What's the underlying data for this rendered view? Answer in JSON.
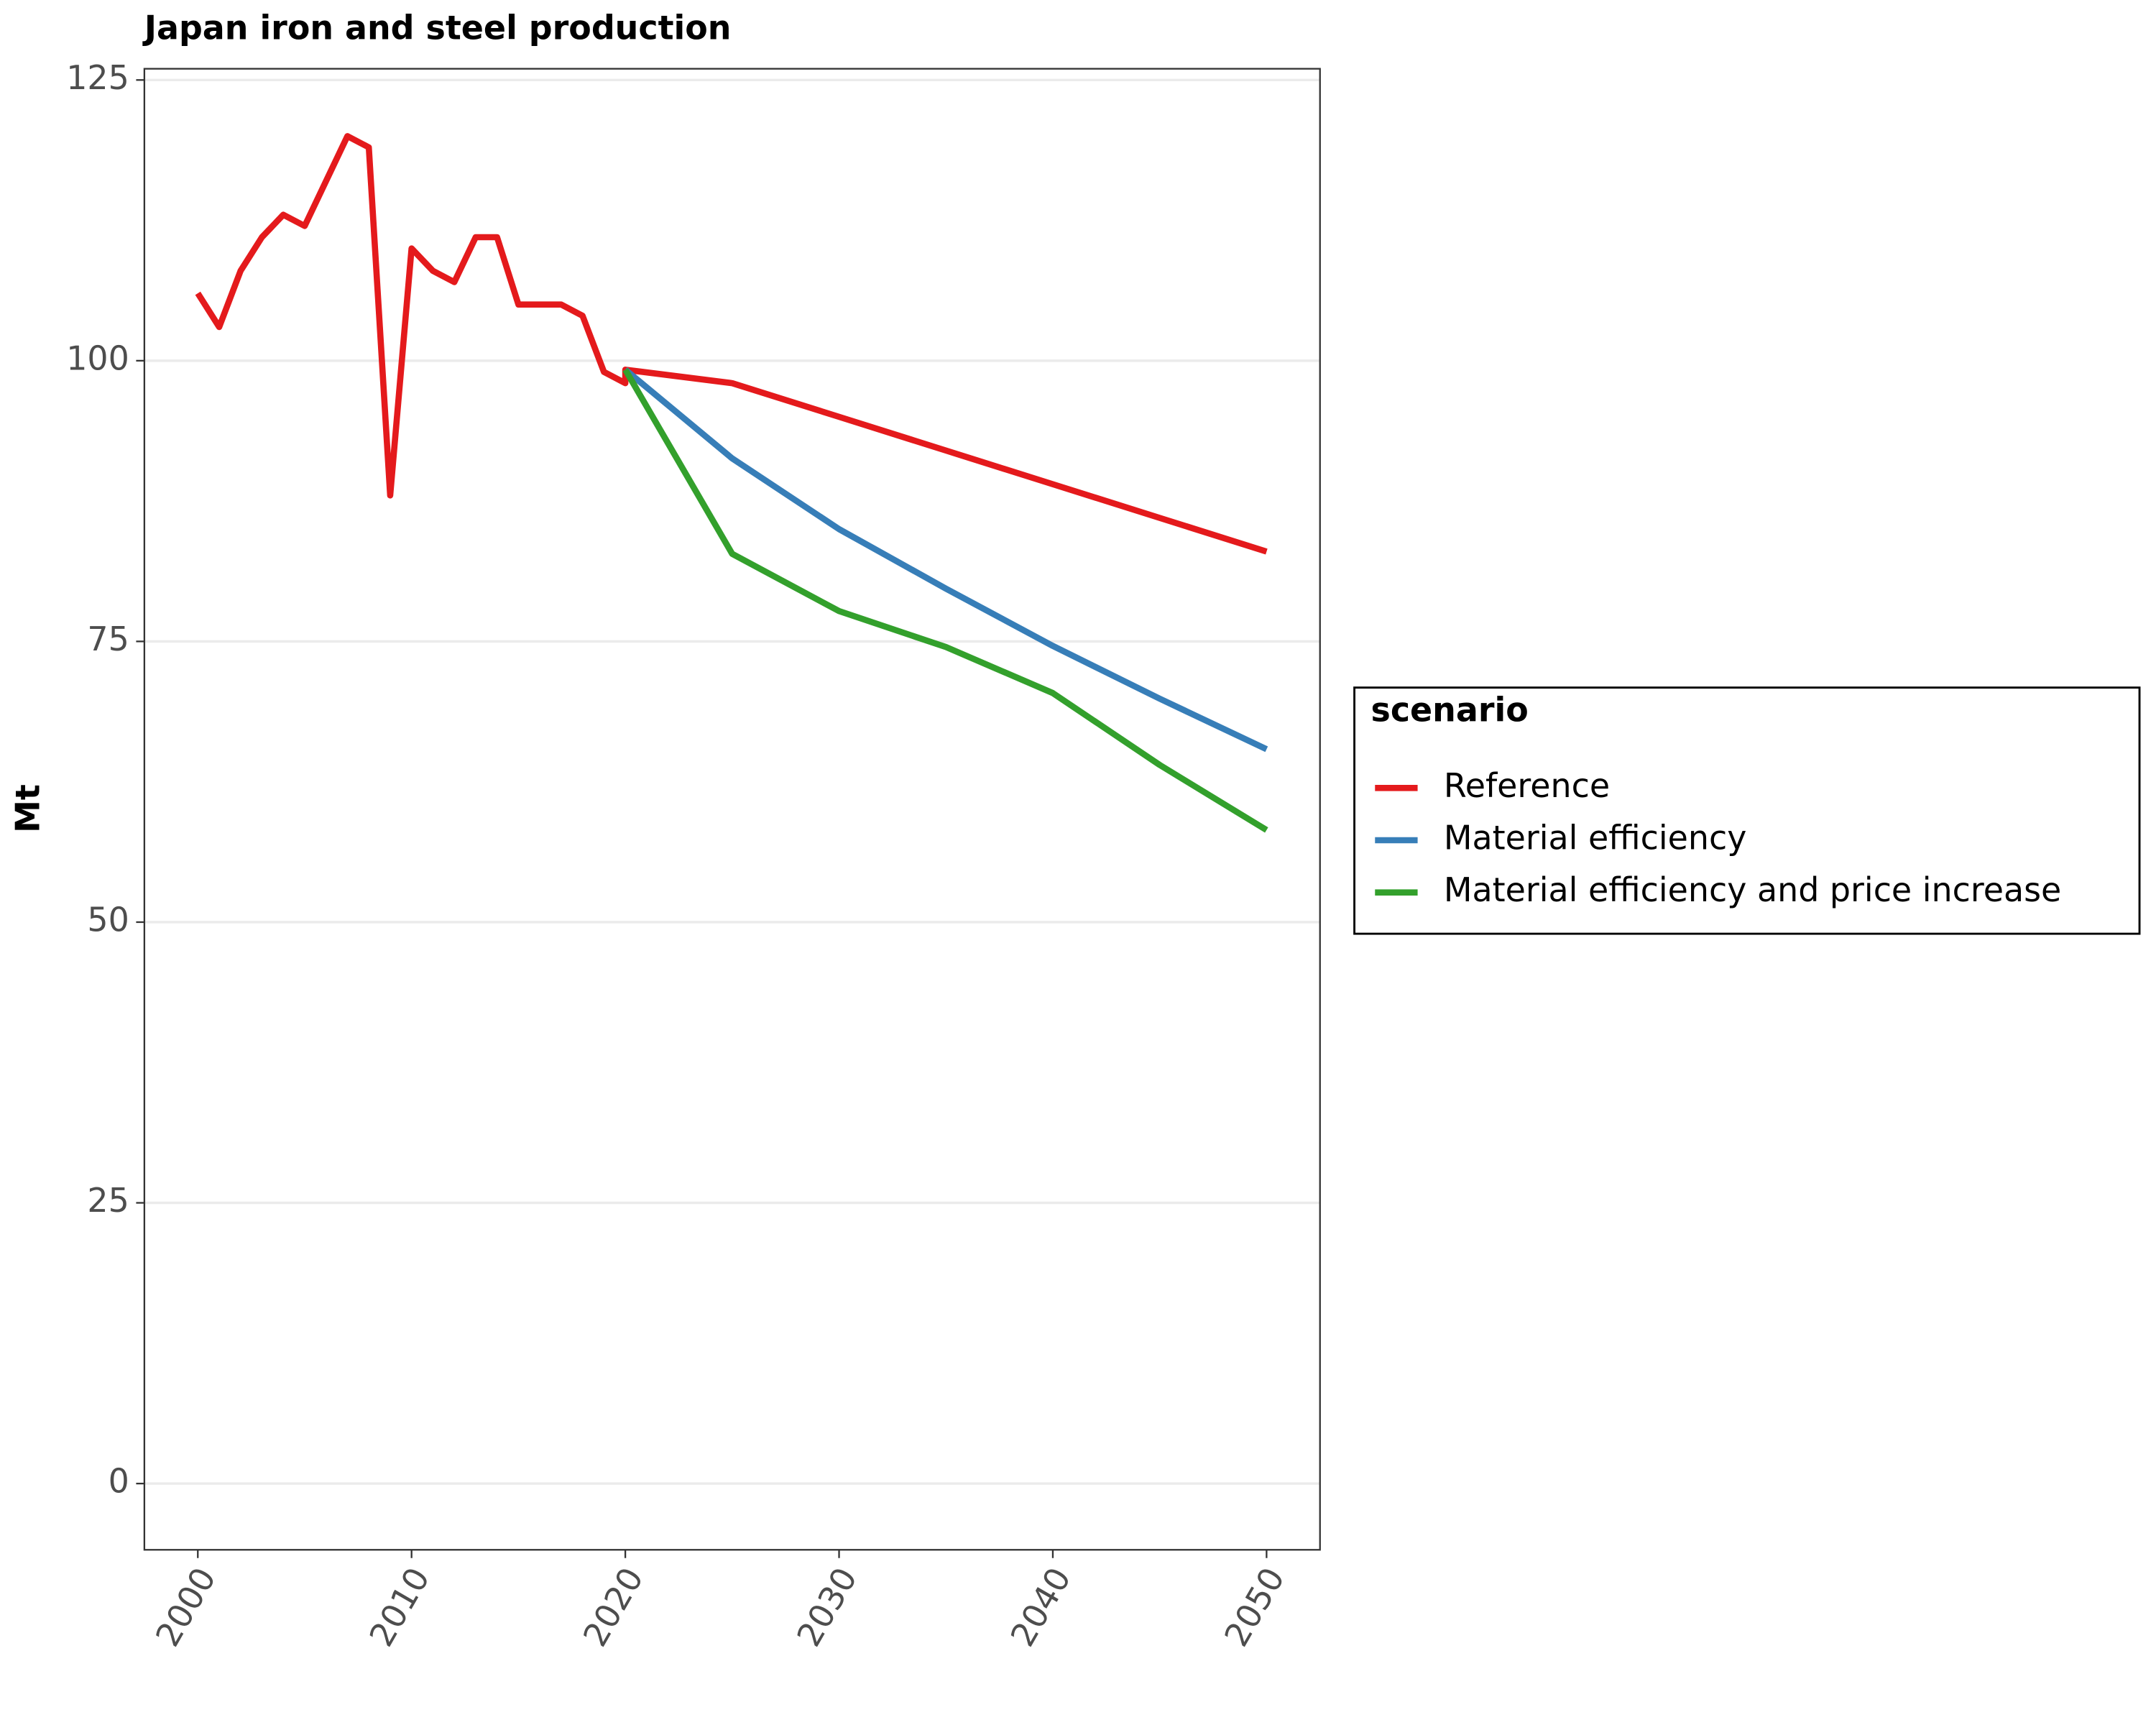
{
  "chart_data": {
    "type": "line",
    "title": "Japan  iron and steel production",
    "y_label": "Mt",
    "legend_title": "scenario",
    "legend_position": "right",
    "grid": true,
    "xlim": [
      1997.5,
      2052.5
    ],
    "xticks": [
      2000,
      2010,
      2020,
      2030,
      2040,
      2050
    ],
    "ylim": [
      -5.9,
      126
    ],
    "yticks": [
      0,
      25,
      50,
      75,
      100,
      125
    ],
    "series": [
      {
        "name": "Reference",
        "color": "#e41a1c",
        "x": [
          2000,
          2001,
          2002,
          2003,
          2004,
          2005,
          2006,
          2007,
          2008,
          2009,
          2010,
          2011,
          2012,
          2013,
          2014,
          2015,
          2016,
          2017,
          2018,
          2019,
          2020,
          2020,
          2025,
          2030,
          2035,
          2040,
          2045,
          2050
        ],
        "values": [
          106,
          103,
          108,
          111,
          113,
          112,
          116,
          120,
          119,
          88,
          110,
          108,
          107,
          111,
          111,
          105,
          105,
          105,
          104,
          99,
          98,
          99.2,
          98,
          95,
          92,
          89,
          86,
          83
        ]
      },
      {
        "name": "Material efficiency",
        "color": "#377eb8",
        "x": [
          2020,
          2025,
          2030,
          2035,
          2040,
          2045,
          2050
        ],
        "values": [
          99.2,
          91.3,
          85,
          79.7,
          74.6,
          69.9,
          65.4
        ]
      },
      {
        "name": "Material efficiency and price increase",
        "color": "#33a02c",
        "x": [
          2020,
          2025,
          2030,
          2035,
          2040,
          2045,
          2050
        ],
        "values": [
          99.2,
          82.8,
          77.7,
          74.5,
          70.4,
          64,
          58.2
        ]
      }
    ]
  }
}
